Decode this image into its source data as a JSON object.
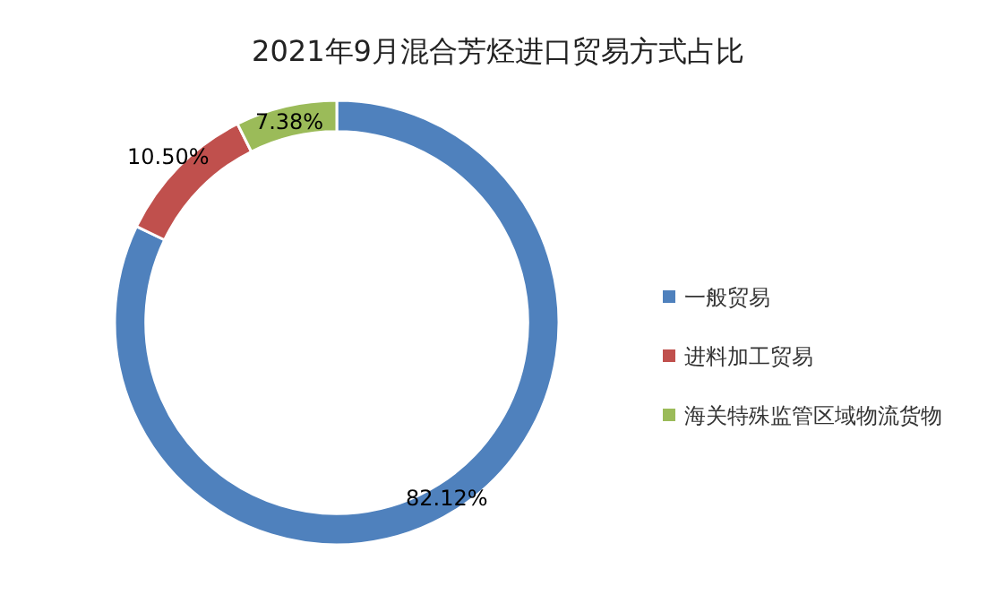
{
  "chart_data": {
    "type": "donut",
    "title": "2021年9月混合芳烃进口贸易方式占比",
    "categories": [
      "一般贸易",
      "进料加工贸易",
      "海关特殊监管区域物流货物"
    ],
    "values": [
      82.12,
      10.5,
      7.38
    ],
    "colors": [
      "#4f81bd",
      "#c0504d",
      "#9bbb59"
    ],
    "value_labels": [
      "82.12%",
      "10.50%",
      "7.38%"
    ],
    "legend": "right"
  }
}
